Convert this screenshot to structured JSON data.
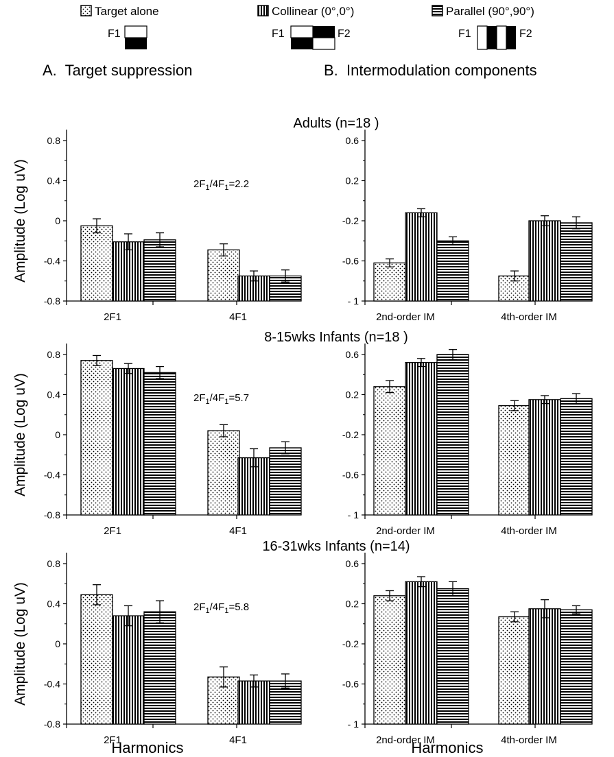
{
  "legend": [
    {
      "key": "target",
      "label": "Target alone",
      "pattern": "dots"
    },
    {
      "key": "collinear",
      "label": "Collinear (0°,0°)",
      "pattern": "vstripes"
    },
    {
      "key": "parallel",
      "label": "Parallel (90°,90°)",
      "pattern": "hstripes"
    }
  ],
  "stimulus_labels": {
    "f1": "F1",
    "f2": "F2"
  },
  "column_titles": {
    "left": "A.  Target suppression",
    "right": "B.  Intermodulation components"
  },
  "ylabel": "Amplitude (Log uV)",
  "xlabel": "Harmonics",
  "chart_data": [
    {
      "type": "bar",
      "panel": "A",
      "group": "Adults (n=18 )",
      "categories": [
        "2F1",
        "4F1"
      ],
      "ylim": [
        -0.8,
        1.0
      ],
      "yticks": [
        "0.8",
        "0.4",
        "0",
        "-0.4",
        "-0.8"
      ],
      "ratio": {
        "lead": "2F",
        "sub1": "1",
        "mid": "/4F",
        "sub2": "1",
        "tail": "=2.2"
      },
      "series": [
        {
          "name": "Target alone",
          "values": [
            -0.05,
            -0.29
          ],
          "errors": [
            0.07,
            0.06
          ]
        },
        {
          "name": "Collinear (0°,0°)",
          "values": [
            -0.21,
            -0.55
          ],
          "errors": [
            0.08,
            0.05
          ]
        },
        {
          "name": "Parallel (90°,90°)",
          "values": [
            -0.19,
            -0.55
          ],
          "errors": [
            0.07,
            0.06
          ]
        }
      ]
    },
    {
      "type": "bar",
      "panel": "B",
      "group": "Adults (n=18 )",
      "categories": [
        "2nd-order IM",
        "4th-order IM"
      ],
      "ylim": [
        -1.0,
        0.8
      ],
      "yticks": [
        "0.6",
        "0.2",
        "-0.2",
        "-0.6",
        "- 1"
      ],
      "series": [
        {
          "name": "Target alone",
          "values": [
            -0.62,
            -0.75
          ],
          "errors": [
            0.04,
            0.05
          ]
        },
        {
          "name": "Collinear (0°,0°)",
          "values": [
            -0.12,
            -0.2
          ],
          "errors": [
            0.04,
            0.05
          ]
        },
        {
          "name": "Parallel (90°,90°)",
          "values": [
            -0.4,
            -0.22
          ],
          "errors": [
            0.04,
            0.06
          ]
        }
      ]
    },
    {
      "type": "bar",
      "panel": "A",
      "group": "8-15wks Infants (n=18 )",
      "categories": [
        "2F1",
        "4F1"
      ],
      "ylim": [
        -0.8,
        1.0
      ],
      "yticks": [
        "0.8",
        "0.4",
        "0",
        "-0.4",
        "-0.8"
      ],
      "ratio": {
        "lead": "2F",
        "sub1": "1",
        "mid": "/4F",
        "sub2": "1",
        "tail": "=5.7"
      },
      "series": [
        {
          "name": "Target alone",
          "values": [
            0.74,
            0.04
          ],
          "errors": [
            0.05,
            0.06
          ]
        },
        {
          "name": "Collinear (0°,0°)",
          "values": [
            0.66,
            -0.23
          ],
          "errors": [
            0.05,
            0.09
          ]
        },
        {
          "name": "Parallel (90°,90°)",
          "values": [
            0.62,
            -0.13
          ],
          "errors": [
            0.06,
            0.06
          ]
        }
      ]
    },
    {
      "type": "bar",
      "panel": "B",
      "group": "8-15wks Infants (n=18 )",
      "categories": [
        "2nd-order IM",
        "4th-order IM"
      ],
      "ylim": [
        -1.0,
        0.8
      ],
      "yticks": [
        "0.6",
        "0.2",
        "-0.2",
        "-0.6",
        "- 1"
      ],
      "series": [
        {
          "name": "Target alone",
          "values": [
            0.28,
            0.09
          ],
          "errors": [
            0.06,
            0.05
          ]
        },
        {
          "name": "Collinear (0°,0°)",
          "values": [
            0.52,
            0.15
          ],
          "errors": [
            0.04,
            0.04
          ]
        },
        {
          "name": "Parallel (90°,90°)",
          "values": [
            0.6,
            0.16
          ],
          "errors": [
            0.05,
            0.05
          ]
        }
      ]
    },
    {
      "type": "bar",
      "panel": "A",
      "group": "16-31wks Infants (n=14)",
      "categories": [
        "2F1",
        "4F1"
      ],
      "ylim": [
        -0.8,
        1.0
      ],
      "yticks": [
        "0.8",
        "0.4",
        "0",
        "-0.4",
        "-0.8"
      ],
      "ratio": {
        "lead": "2F",
        "sub1": "1",
        "mid": "/4F",
        "sub2": "1",
        "tail": "=5.8"
      },
      "series": [
        {
          "name": "Target alone",
          "values": [
            0.49,
            -0.33
          ],
          "errors": [
            0.1,
            0.1
          ]
        },
        {
          "name": "Collinear (0°,0°)",
          "values": [
            0.28,
            -0.37
          ],
          "errors": [
            0.1,
            0.06
          ]
        },
        {
          "name": "Parallel (90°,90°)",
          "values": [
            0.32,
            -0.37
          ],
          "errors": [
            0.11,
            0.07
          ]
        }
      ]
    },
    {
      "type": "bar",
      "panel": "B",
      "group": "16-31wks Infants (n=14)",
      "categories": [
        "2nd-order IM",
        "4th-order IM"
      ],
      "ylim": [
        -1.0,
        0.8
      ],
      "yticks": [
        "0.6",
        "0.2",
        "-0.2",
        "-0.6",
        "- 1"
      ],
      "series": [
        {
          "name": "Target alone",
          "values": [
            0.28,
            0.07
          ],
          "errors": [
            0.05,
            0.05
          ]
        },
        {
          "name": "Collinear (0°,0°)",
          "values": [
            0.42,
            0.15
          ],
          "errors": [
            0.05,
            0.09
          ]
        },
        {
          "name": "Parallel (90°,90°)",
          "values": [
            0.35,
            0.14
          ],
          "errors": [
            0.07,
            0.04
          ]
        }
      ]
    }
  ]
}
